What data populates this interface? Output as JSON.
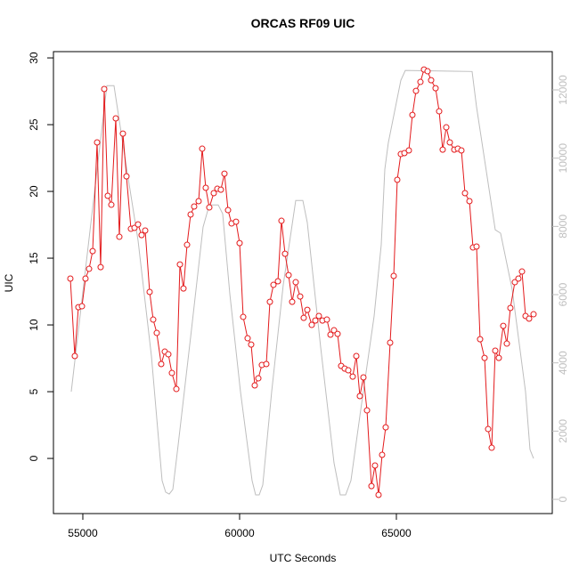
{
  "chart_data": {
    "type": "line",
    "title": "ORCAS RF09 UIC",
    "x_label": "UTC Seconds",
    "y_label": "UIC",
    "xlim": [
      54063,
      69972
    ],
    "xticks": [
      55000,
      60000,
      65000
    ],
    "ylim": [
      -4.13,
      30.47
    ],
    "yticks": [
      0,
      5,
      10,
      15,
      20,
      25,
      30
    ],
    "y2lim": [
      -417,
      13122
    ],
    "y2ticks": [
      0,
      2000,
      4000,
      6000,
      8000,
      10000,
      12000
    ],
    "series": [
      {
        "color": "#e31a1c",
        "markers": true,
        "x": [
          54602,
          54744,
          54858,
          54972,
          55085,
          55199,
          55313,
          55455,
          55568,
          55682,
          55795,
          55909,
          56051,
          56165,
          56278,
          56392,
          56534,
          56648,
          56761,
          56875,
          56989,
          57131,
          57244,
          57358,
          57500,
          57614,
          57727,
          57841,
          57983,
          58097,
          58210,
          58324,
          58438,
          58551,
          58693,
          58807,
          58920,
          59034,
          59176,
          59290,
          59403,
          59517,
          59631,
          59744,
          59886,
          60000,
          60114,
          60256,
          60369,
          60483,
          60597,
          60710,
          60852,
          60966,
          61080,
          61222,
          61335,
          61449,
          61563,
          61676,
          61790,
          61932,
          62045,
          62159,
          62301,
          62415,
          62528,
          62642,
          62784,
          62898,
          63011,
          63125,
          63239,
          63352,
          63466,
          63608,
          63722,
          63835,
          63949,
          64063,
          64205,
          64318,
          64432,
          64545,
          64659,
          64801,
          64915,
          65028,
          65142,
          65256,
          65398,
          65511,
          65625,
          65767,
          65881,
          65994,
          66108,
          66250,
          66364,
          66477,
          66591,
          66705,
          66847,
          66960,
          67074,
          67188,
          67330,
          67443,
          67557,
          67670,
          67813,
          67926,
          68040,
          68153,
          68267,
          68409,
          68523,
          68636,
          68778,
          68892,
          69006,
          69119,
          69233,
          69375
        ],
        "values": [
          13.47,
          7.67,
          11.33,
          11.4,
          13.47,
          14.2,
          15.53,
          23.67,
          14.33,
          27.67,
          19.67,
          19,
          25.47,
          16.6,
          24.33,
          21.13,
          17.2,
          17.27,
          17.53,
          16.73,
          17.07,
          12.47,
          10.4,
          9.4,
          7.07,
          8,
          7.8,
          6.4,
          5.2,
          14.53,
          12.73,
          16,
          18.27,
          18.87,
          19.27,
          23.2,
          20.27,
          18.8,
          19.87,
          20.2,
          20.13,
          21.33,
          18.6,
          17.6,
          17.73,
          16.13,
          10.6,
          9,
          8.53,
          5.47,
          6,
          7,
          7.07,
          11.73,
          13,
          13.27,
          17.8,
          15.33,
          13.73,
          11.73,
          13.2,
          12.13,
          10.53,
          11.13,
          10,
          10.33,
          10.67,
          10.33,
          10.4,
          9.27,
          9.6,
          9.33,
          6.93,
          6.73,
          6.6,
          6.13,
          7.67,
          4.67,
          6.07,
          3.6,
          -2.07,
          -0.53,
          -2.73,
          0.27,
          2.33,
          8.67,
          13.67,
          20.87,
          22.8,
          22.87,
          23.07,
          25.73,
          27.53,
          28.2,
          29.13,
          29,
          28.33,
          27.73,
          26,
          23.13,
          24.8,
          23.67,
          23.13,
          23.2,
          23.07,
          19.87,
          19.27,
          15.8,
          15.87,
          8.93,
          7.53,
          2.2,
          0.8,
          8.07,
          7.53,
          9.93,
          8.6,
          11.27,
          13.2,
          13.47,
          14,
          10.67,
          10.47,
          10.8
        ]
      },
      {
        "color": "#bebebe",
        "axis": "y2",
        "markers": false,
        "x": [
          54631,
          55767,
          55994,
          56335,
          56761,
          57188,
          57528,
          57642,
          57756,
          57870,
          58040,
          58466,
          58835,
          59034,
          59318,
          59460,
          59688,
          60028,
          60398,
          60511,
          60625,
          60739,
          61023,
          61392,
          61790,
          62017,
          62159,
          62585,
          63011,
          63210,
          63381,
          63551,
          63864,
          64290,
          64517,
          64631,
          64744,
          65142,
          65284,
          67415,
          67557,
          68153,
          68324,
          68693,
          69119,
          69261,
          69375
        ],
        "values": [
          3155,
          12125,
          12125,
          10065,
          7590,
          4200,
          550,
          210,
          155,
          290,
          1590,
          4980,
          7980,
          8630,
          8630,
          8370,
          6025,
          3155,
          550,
          130,
          130,
          420,
          3155,
          6285,
          8760,
          8760,
          8110,
          4460,
          1070,
          130,
          130,
          550,
          2630,
          5370,
          7460,
          9670,
          10455,
          12280,
          12570,
          12540,
          11500,
          7900,
          7800,
          6150,
          3155,
          1460,
          1200
        ]
      }
    ]
  }
}
